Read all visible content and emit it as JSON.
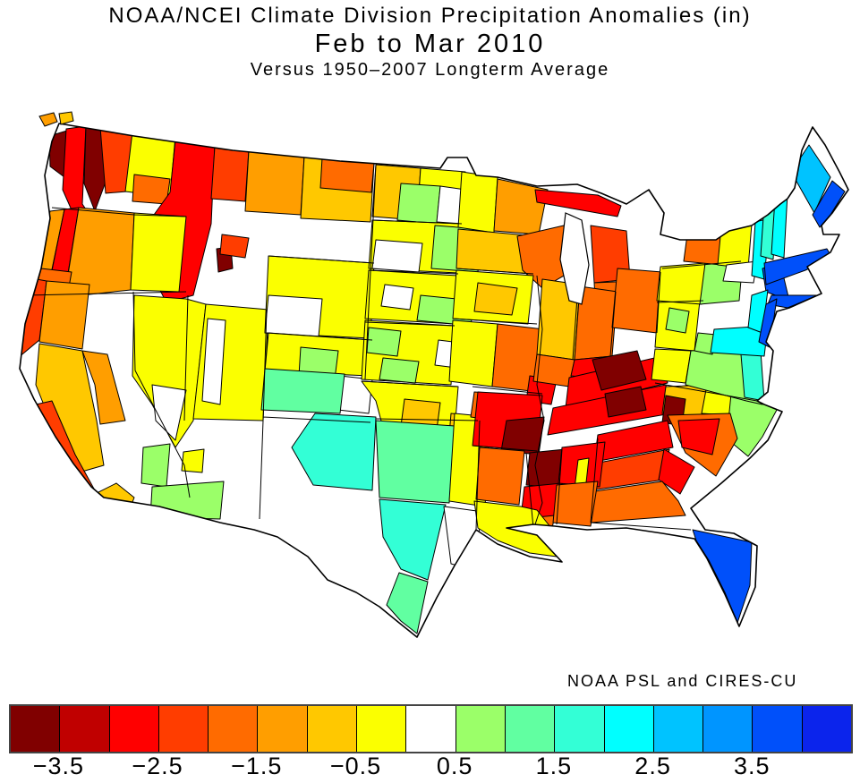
{
  "title": {
    "line1": "NOAA/NCEI Climate Division Precipitation Anomalies (in)",
    "line2": "Feb to Mar 2010",
    "line3": "Versus 1950–2007 Longterm Average"
  },
  "credit": "NOAA PSL and CIRES-CU",
  "colorbar": {
    "units": "in",
    "colors": [
      "#800000",
      "#C00000",
      "#FF0000",
      "#FF3D00",
      "#FF6B00",
      "#FF9E00",
      "#FFC800",
      "#FBFF00",
      "#FFFFFF",
      "#9BFF69",
      "#61FFA1",
      "#33FFD6",
      "#00FFFF",
      "#00C3FF",
      "#0095FF",
      "#0050FA",
      "#0B24EC"
    ],
    "tick_labels": [
      "−3.5",
      "−2.5",
      "−1.5",
      "−0.5",
      "0.5",
      "1.5",
      "2.5",
      "3.5"
    ],
    "tick_after_cell": [
      1,
      3,
      5,
      7,
      9,
      11,
      13,
      15
    ],
    "cell_step": 0.5
  },
  "map": {
    "base_color": "#FFFFFF",
    "boundary_color": "#000000",
    "regions": {
      "wa-islands-a": 6,
      "wa-islands-b": 7,
      "wa-olympic": 1,
      "wa-puget-red": 3,
      "wa-cascades-dark": 1,
      "wa-east-redorange": 4,
      "wa-ne-yellow": 8,
      "wa-se-orange": 5,
      "id-mt-west-red": 3,
      "id-yellowstone-dark": 1,
      "mt-nw-redorange": 4,
      "mt-center-orange": 6,
      "mt-east-amber": 7,
      "mt-ne-orange": 5,
      "or-coast-amber": 6,
      "or-cascades-red": 3,
      "or-central-orange": 6,
      "or-east-yellow": 8,
      "ca-nw-orange": 5,
      "ca-nw-redorange": 4,
      "ca-ne-amber": 6,
      "ca-valley-amber": 7,
      "ca-sierra-amber": 6,
      "ca-central-coast-redorange": 4,
      "ca-socal-amber": 7,
      "nv-yellow": 8,
      "nv-white-patch": 9,
      "ut-yellow": 8,
      "ut-west-white": 9,
      "az-west-green": 10,
      "az-se-green": 10,
      "nm-yellow-spot": 8,
      "wy-yellow": 8,
      "wy-sw-white": 9,
      "wy-nw-redorange": 4,
      "co-yellow": 8,
      "co-green-north": 10,
      "co-se-white": 9,
      "co-se-aqua": 11,
      "nd-west-amber": 7,
      "nd-yellow": 8,
      "nd-green": 10,
      "nd-east-white": 9,
      "sd-yellow": 8,
      "sd-west-white": 9,
      "sd-east-green": 10,
      "ne-yellow": 8,
      "ne-green-se": 10,
      "ne-white": 9,
      "ks-yellow": 8,
      "ks-green-west": 10,
      "ks-white-east": 9,
      "ks-green-south": 10,
      "ok-yellow": 8,
      "ok-amber": 7,
      "tx-ne-amber": 7,
      "ok-tx-panhandle-turquoise": 12,
      "tx-central-green": 11,
      "tx-south-turquoise": 12,
      "tx-tip-green": 11,
      "tx-east-yellow": 8,
      "tx-coast-white": 9,
      "mn-west-yellow": 8,
      "mn-ne-orange": 6,
      "mn-south-amber": 7,
      "ia-yellow": 8,
      "ia-amber": 7,
      "mo-yellow": 8,
      "mo-east-orange": 5,
      "mo-se-red": 3,
      "wi-orange": 5,
      "mi-up-red": 3,
      "mi-nw-redorange": 4,
      "mi-se-orange": 5,
      "il-amber": 7,
      "il-south-orange": 5,
      "in-orange": 5,
      "in-south-red": 3,
      "oh-orange": 5,
      "ky-red": 3,
      "ky-dark-core": 1,
      "wv-yellow": 8,
      "wv-green": 10,
      "va-west-yellow": 8,
      "va-green": 10,
      "va-bay-teal": 12,
      "tn-red": 3,
      "tn-dark-west": 1,
      "nc-west-amber": 7,
      "tn-dark-east": 1,
      "nc-yellow": 8,
      "nc-east-green": 10,
      "sc-orange": 5,
      "sc-red": 3,
      "ga-north-red": 3,
      "ga-center-redorange": 4,
      "ga-south-orange": 5,
      "ga-east-red": 3,
      "ar-nw-orange": 5,
      "ar-red": 3,
      "ar-se-dark": 1,
      "ms-north-dark": 1,
      "ms-red": 3,
      "ms-south-orange": 5,
      "al-red": 3,
      "al-yellow-sliver": 8,
      "al-south-orange": 5,
      "la-orange": 5,
      "la-south-yellow": 8,
      "fl-blue": 16,
      "fl-keys-teal": 12,
      "pa-yellow": 8,
      "pa-east-green": 10,
      "ny-orange": 5,
      "ny-yellow": 8,
      "ny-adk-white": 9,
      "ny-south-white": 9,
      "ny-hudson-cyan": 13,
      "ny-se-blue": 16,
      "vt-turquoise": 12,
      "nh-cyan": 13,
      "me-coast-sky": 14,
      "me-coast-blue": 16,
      "ma-ct-blue": 16,
      "li-blue": 16,
      "nj-cyan": 13,
      "nj-coast-blue": 16,
      "md-de-cyan": 13,
      "md-green": 10
    }
  }
}
